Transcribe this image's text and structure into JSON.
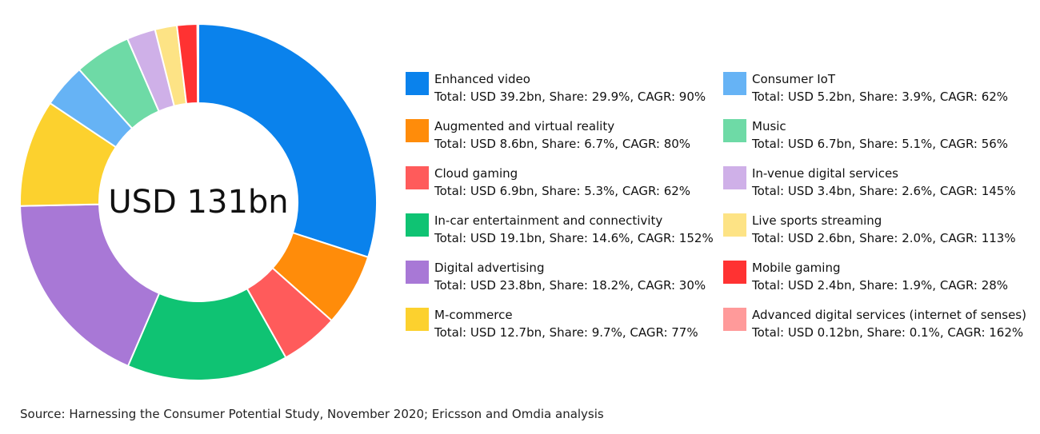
{
  "chart_data": {
    "type": "pie",
    "subtype": "donut",
    "center_label": "USD 131bn",
    "categories": [
      "Enhanced video",
      "Augmented and virtual reality",
      "Cloud gaming",
      "In-car entertainment and connectivity",
      "Digital advertising",
      "M-commerce",
      "Consumer IoT",
      "Music",
      "In-venue digital services",
      "Live sports streaming",
      "Mobile gaming",
      "Advanced digital services (internet of senses)"
    ],
    "values": [
      39.2,
      8.6,
      6.9,
      19.1,
      23.8,
      12.7,
      5.2,
      6.7,
      3.4,
      2.6,
      2.4,
      0.12
    ],
    "shares": [
      29.9,
      6.7,
      5.3,
      14.6,
      18.2,
      9.7,
      3.9,
      5.1,
      2.6,
      2.0,
      1.9,
      0.1
    ],
    "colors": [
      "#0a82ec",
      "#ff8c0a",
      "#ff5b5b",
      "#0fc373",
      "#a878d6",
      "#fcd12e",
      "#66b3f5",
      "#6edaa6",
      "#cfb0e8",
      "#fde385",
      "#ff3232",
      "#ff9a9a"
    ],
    "legend": [
      {
        "name": "Enhanced video",
        "detail": "Total: USD 39.2bn, Share: 29.9%, CAGR: 90%"
      },
      {
        "name": "Augmented and virtual reality",
        "detail": "Total: USD 8.6bn, Share: 6.7%, CAGR: 80%"
      },
      {
        "name": "Cloud gaming",
        "detail": "Total: USD 6.9bn, Share: 5.3%, CAGR: 62%"
      },
      {
        "name": "In-car entertainment and connectivity",
        "detail": "Total: USD 19.1bn, Share: 14.6%, CAGR: 152%"
      },
      {
        "name": "Digital advertising",
        "detail": "Total: USD 23.8bn, Share: 18.2%, CAGR: 30%"
      },
      {
        "name": "M-commerce",
        "detail": "Total: USD 12.7bn, Share: 9.7%, CAGR: 77%"
      },
      {
        "name": "Consumer IoT",
        "detail": "Total: USD 5.2bn, Share: 3.9%, CAGR: 62%"
      },
      {
        "name": "Music",
        "detail": "Total: USD 6.7bn, Share: 5.1%, CAGR: 56%"
      },
      {
        "name": "In-venue digital services",
        "detail": "Total: USD 3.4bn, Share: 2.6%, CAGR: 145%"
      },
      {
        "name": "Live sports streaming",
        "detail": "Total: USD 2.6bn, Share: 2.0%, CAGR: 113%"
      },
      {
        "name": "Mobile gaming",
        "detail": "Total: USD 2.4bn, Share: 1.9%, CAGR: 28%"
      },
      {
        "name": "Advanced digital services (internet of senses)",
        "detail": "Total: USD 0.12bn, Share: 0.1%, CAGR: 162%"
      }
    ],
    "source": "Source: Harnessing the Consumer Potential Study, November 2020; Ericsson and Omdia analysis"
  }
}
